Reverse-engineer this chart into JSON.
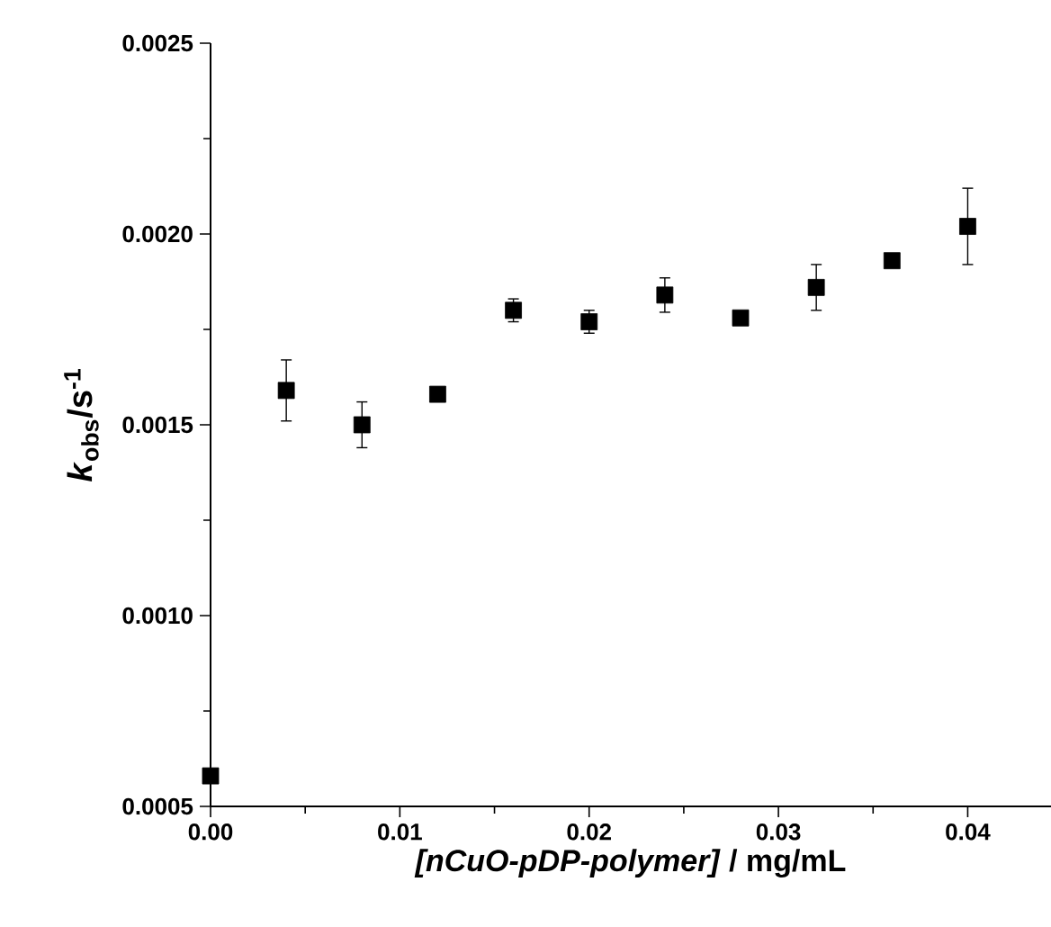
{
  "chart_data": {
    "type": "scatter",
    "xlabel": "*[nCuO-pDP-polymer]* / mg/mL",
    "ylabel": "*k*$_{obs}$/s$^{-1}$",
    "x": [
      0,
      0.004,
      0.008,
      0.012,
      0.016,
      0.02,
      0.024,
      0.028,
      0.032,
      0.036,
      0.04
    ],
    "values": [
      0.00058,
      0.00159,
      0.0015,
      0.00158,
      0.0018,
      0.00177,
      0.00184,
      0.00178,
      0.00186,
      0.00193,
      0.00202
    ],
    "errors": [
      1e-05,
      8e-05,
      6e-05,
      null,
      3e-05,
      3e-05,
      4.5e-05,
      1e-05,
      6e-05,
      null,
      0.0001
    ],
    "color": "#000000",
    "marker": "square",
    "xlim": [
      0,
      0.0444
    ],
    "ylim": [
      0.0005,
      0.0025
    ],
    "xticks": [
      {
        "value": 0,
        "label": "0.00"
      },
      {
        "value": 0.01,
        "label": "0.01"
      },
      {
        "value": 0.02,
        "label": "0.02"
      },
      {
        "value": 0.03,
        "label": "0.03"
      },
      {
        "value": 0.04,
        "label": "0.04"
      }
    ],
    "yticks": [
      {
        "value": 0.0005,
        "label": "0.0005"
      },
      {
        "value": 0.001,
        "label": "0.0010"
      },
      {
        "value": 0.0015,
        "label": "0.0015"
      },
      {
        "value": 0.002,
        "label": "0.0020"
      },
      {
        "value": 0.0025,
        "label": "0.0025"
      }
    ],
    "grid": false
  }
}
